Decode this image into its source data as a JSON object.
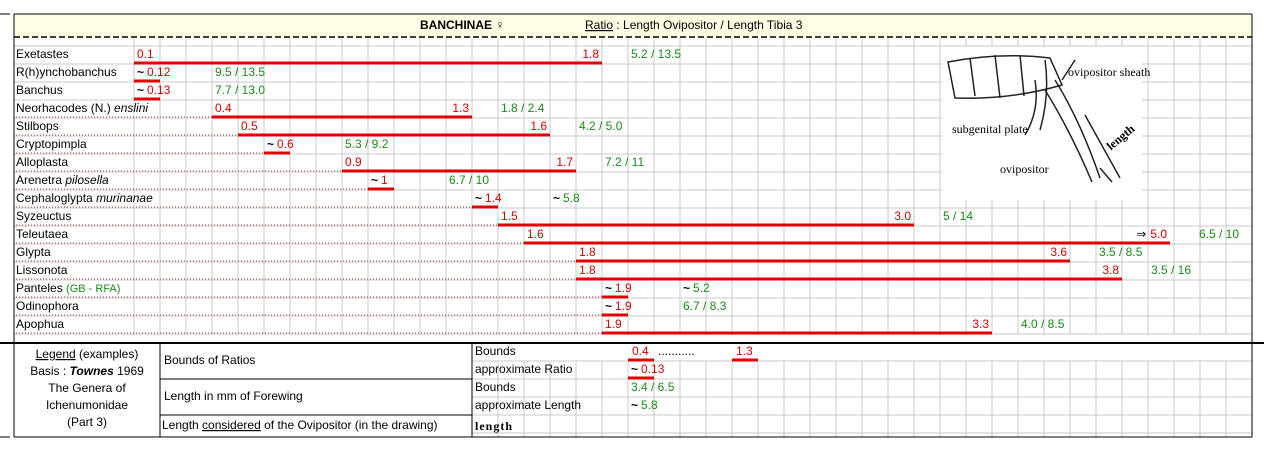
{
  "header": {
    "title": "BANCHINAE ♀",
    "ratio_word": "Ratio",
    "ratio_rest": " : Length Ovipositor / Length Tibia 3"
  },
  "rows": [
    {
      "name": "Exetastes",
      "low": 0.1,
      "high": 1.8,
      "fw": "5.2 / 13.5"
    },
    {
      "name": "R(h)ynchobanchus",
      "prefix": "~",
      "low": 0.12,
      "fw": "9.5 / 13.5"
    },
    {
      "name": "Banchus",
      "prefix": "~",
      "low": 0.13,
      "fw": "7.7 / 13.0"
    },
    {
      "name": "Neorhacodes (N.) ",
      "epithet": "enslini",
      "low": 0.4,
      "high": 1.3,
      "fw": "1.8 / 2.4"
    },
    {
      "name": "Stilbops",
      "low": 0.5,
      "high": 1.6,
      "fw": "4.2 / 5.0"
    },
    {
      "name": "Cryptopimpla",
      "prefix": "~",
      "low": 0.6,
      "fw": "5.3 / 9.2"
    },
    {
      "name": "Alloplasta",
      "low": 0.9,
      "high": 1.7,
      "fw": "7.2 / 11"
    },
    {
      "name": "Arenetra ",
      "epithet": "pilosella",
      "prefix": "~",
      "low": 1.0,
      "low_label": "1.0",
      "fw": "6.7 / 10"
    },
    {
      "name": "Cephaloglypta ",
      "epithet": "murinanae",
      "prefix": "~",
      "low": 1.4,
      "fw_prefix": "~",
      "fw": "5.8"
    },
    {
      "name": "Syzeuctus",
      "low": 1.5,
      "high": 3.0,
      "high_label": "3.0",
      "fw": "5 / 14"
    },
    {
      "name": "Teleutaea",
      "low": 1.6,
      "high_prefix": "⇒",
      "high": 5.0,
      "high_label": "5.0",
      "fw": "6.5 / 10"
    },
    {
      "name": "Glypta",
      "low": 1.8,
      "high": 3.6,
      "fw": "3.5 / 8.5"
    },
    {
      "name": "Lissonota",
      "low": 1.8,
      "high": 3.8,
      "fw": "3.5 / 16"
    },
    {
      "name": "Panteles ",
      "note": "(GB - RFA)",
      "prefix": "~",
      "low": 1.9,
      "fw_prefix": "~",
      "fw": "5.2"
    },
    {
      "name": "Odinophora",
      "prefix": "~",
      "low": 1.9,
      "fw": "6.7 / 8.3"
    },
    {
      "name": "Apophua",
      "low": 1.9,
      "high": 3.3,
      "fw": "4.0 / 8.5"
    }
  ],
  "figure": {
    "sheath": "ovipositor sheath",
    "plate": "subgenital plate",
    "ovipositor": "ovipositor",
    "length": "length"
  },
  "legend": {
    "heading": "Legend",
    "heading_rest": " (examples)",
    "basis": "Basis : ",
    "author": "Townes",
    "year": " 1969",
    "book": [
      "The Genera of",
      "Ichenumonidae",
      "(Part 3)"
    ],
    "items": [
      "Bounds of Ratios",
      "Length in mm of Forewing"
    ],
    "ovi_pre": "Length ",
    "ovi_u": "considered",
    "ovi_post": " of the Ovipositor (in the drawing)",
    "sub": [
      "Bounds",
      "approximate Ratio",
      "Bounds",
      "approximate Length"
    ],
    "length_word": "length",
    "ex_low": 0.4,
    "ex_dots": "...........",
    "ex_high": 1.3,
    "ex_approx_prefix": "~",
    "ex_approx": 0.13,
    "ex_bounds": "3.4 / 6.5",
    "ex_len_prefix": "~",
    "ex_len": "5.8"
  }
}
